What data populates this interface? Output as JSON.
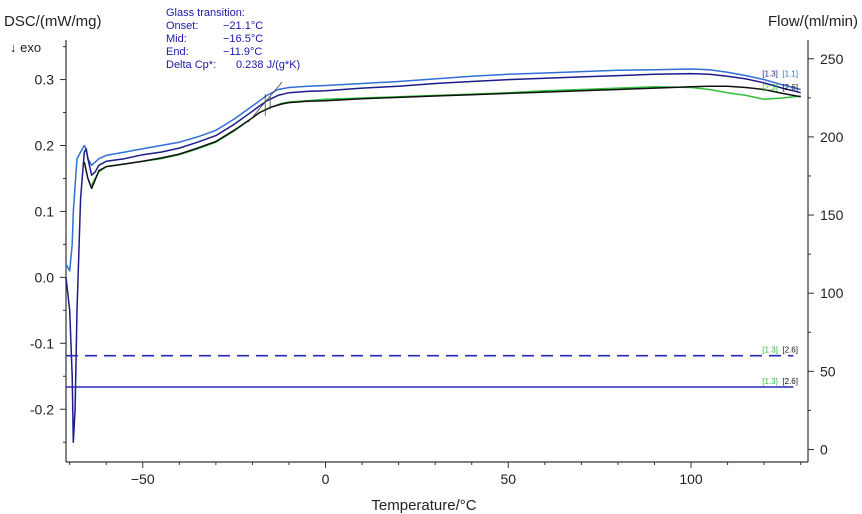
{
  "chart_data": {
    "type": "line",
    "xlabel": "Temperature/°C",
    "ylabel_left": "DSC/(mW/mg)",
    "ylabel_right": "Flow/(ml/min)",
    "exo_label": "↓ exo",
    "xlim": [
      -71,
      132
    ],
    "ylim_left": [
      -0.28,
      0.36
    ],
    "ylim_right": [
      -8,
      262
    ],
    "x_ticks": [
      -50,
      0,
      50,
      100
    ],
    "x_tick_labels": [
      "−50",
      "0",
      "50",
      "100"
    ],
    "y_left_ticks": [
      -0.2,
      -0.1,
      0.0,
      0.1,
      0.2,
      0.3
    ],
    "y_left_tick_labels": [
      "-0.2",
      "-0.1",
      "0.0",
      "0.1",
      "0.2",
      "0.3"
    ],
    "y_right_ticks": [
      0,
      50,
      100,
      150,
      200,
      250
    ],
    "y_right_tick_labels": [
      "0",
      "50",
      "100",
      "150",
      "200",
      "250"
    ],
    "grid": false,
    "series": [
      {
        "color": "#2f6fd6",
        "axis": "left",
        "x": [
          -71,
          -70,
          -69.3,
          -69,
          -68,
          -67,
          -66,
          -65.5,
          -65,
          -64,
          -63,
          -62,
          -60,
          -55,
          -50,
          -45,
          -40,
          -35,
          -30,
          -25,
          -21,
          -18,
          -16,
          -13,
          -10,
          -5,
          0,
          10,
          20,
          30,
          40,
          50,
          60,
          70,
          80,
          90,
          100,
          105,
          110,
          115,
          120,
          125,
          130
        ],
        "y": [
          0.02,
          0.01,
          0.05,
          0.1,
          0.18,
          0.19,
          0.2,
          0.195,
          0.18,
          0.17,
          0.175,
          0.18,
          0.185,
          0.19,
          0.195,
          0.2,
          0.205,
          0.213,
          0.223,
          0.24,
          0.256,
          0.268,
          0.276,
          0.285,
          0.288,
          0.29,
          0.291,
          0.294,
          0.297,
          0.301,
          0.305,
          0.308,
          0.31,
          0.312,
          0.314,
          0.315,
          0.316,
          0.315,
          0.311,
          0.306,
          0.3,
          0.292,
          0.285
        ],
        "label": "[1.1]"
      },
      {
        "color": "#1c1c8c",
        "axis": "left",
        "x": [
          -71,
          -70,
          -69.3,
          -69,
          -68.5,
          -68,
          -67,
          -66,
          -65.5,
          -65,
          -64,
          -63,
          -62,
          -60,
          -55,
          -50,
          -45,
          -40,
          -35,
          -30,
          -25,
          -21,
          -18,
          -16,
          -13,
          -10,
          -5,
          0,
          10,
          20,
          30,
          40,
          50,
          60,
          70,
          80,
          90,
          100,
          105,
          110,
          115,
          120,
          125,
          130
        ],
        "y": [
          0.0,
          -0.05,
          -0.15,
          -0.25,
          -0.2,
          -0.05,
          0.12,
          0.19,
          0.195,
          0.18,
          0.155,
          0.16,
          0.17,
          0.176,
          0.18,
          0.186,
          0.19,
          0.196,
          0.205,
          0.215,
          0.232,
          0.248,
          0.26,
          0.268,
          0.276,
          0.28,
          0.282,
          0.283,
          0.287,
          0.29,
          0.294,
          0.297,
          0.3,
          0.302,
          0.304,
          0.306,
          0.308,
          0.309,
          0.308,
          0.305,
          0.301,
          0.295,
          0.287,
          0.28
        ],
        "label": "[1.3]"
      },
      {
        "color": "#2fbf3a",
        "axis": "left",
        "x": [
          -64,
          -63,
          -62,
          -60,
          -55,
          -50,
          -45,
          -40,
          -35,
          -30,
          -25,
          -21,
          -18,
          -15,
          -12,
          -10,
          -5,
          0,
          10,
          20,
          30,
          40,
          50,
          60,
          70,
          80,
          90,
          100,
          105,
          110,
          115,
          120,
          125,
          130
        ],
        "y": [
          0.14,
          0.15,
          0.16,
          0.168,
          0.172,
          0.176,
          0.18,
          0.186,
          0.195,
          0.205,
          0.222,
          0.238,
          0.25,
          0.258,
          0.264,
          0.266,
          0.268,
          0.27,
          0.272,
          0.274,
          0.276,
          0.278,
          0.28,
          0.283,
          0.285,
          0.287,
          0.289,
          0.288,
          0.285,
          0.28,
          0.276,
          0.27,
          0.272,
          0.275
        ],
        "label": "[2.3]"
      },
      {
        "color": "#111111",
        "axis": "left",
        "x": [
          -66,
          -65,
          -64,
          -63,
          -62,
          -60,
          -55,
          -50,
          -45,
          -40,
          -35,
          -30,
          -25,
          -21,
          -18,
          -15,
          -12,
          -10,
          -5,
          0,
          10,
          20,
          30,
          40,
          50,
          60,
          70,
          80,
          90,
          100,
          105,
          110,
          115,
          120,
          125,
          130
        ],
        "y": [
          0.175,
          0.15,
          0.135,
          0.148,
          0.162,
          0.168,
          0.172,
          0.176,
          0.181,
          0.187,
          0.196,
          0.206,
          0.223,
          0.238,
          0.25,
          0.258,
          0.263,
          0.265,
          0.267,
          0.268,
          0.271,
          0.273,
          0.275,
          0.277,
          0.279,
          0.281,
          0.283,
          0.285,
          0.287,
          0.289,
          0.29,
          0.29,
          0.288,
          0.285,
          0.279,
          0.274
        ],
        "label": "[2.6]"
      },
      {
        "color": "#2727b8",
        "axis": "right",
        "dash": true,
        "x": [
          -71,
          128
        ],
        "y": [
          60,
          60
        ],
        "label": "[1.3][2.6]"
      },
      {
        "color": "#2727b8",
        "axis": "right",
        "dash": false,
        "x": [
          -71,
          128
        ],
        "y": [
          40,
          40
        ],
        "label": "[1.3][2.6]"
      }
    ],
    "end_tags": [
      {
        "text": "[1.3]",
        "color": "#1c1c8c",
        "x": 119.5,
        "y": 0.305,
        "axis": "left"
      },
      {
        "text": "[1.1]",
        "color": "#2f6fd6",
        "x": 125,
        "y": 0.305,
        "axis": "left"
      },
      {
        "text": "[2.3]",
        "color": "#2fbf3a",
        "x": 119.5,
        "y": 0.284,
        "axis": "left"
      },
      {
        "text": "[2.6]",
        "color": "#111111",
        "x": 125,
        "y": 0.284,
        "axis": "left"
      },
      {
        "text": "[1.3]",
        "color": "#2fbf3a",
        "x": 119.5,
        "y": 62,
        "axis": "right"
      },
      {
        "text": "[2.6]",
        "color": "#111111",
        "x": 125,
        "y": 62,
        "axis": "right"
      },
      {
        "text": "[1.3]",
        "color": "#2fbf3a",
        "x": 119.5,
        "y": 42,
        "axis": "right"
      },
      {
        "text": "[2.6]",
        "color": "#111111",
        "x": 125,
        "y": 42,
        "axis": "right"
      }
    ],
    "annotation": {
      "title": "Glass  transition:",
      "rows": [
        {
          "label": "Onset:",
          "value": "−21.1°C"
        },
        {
          "label": "Mid:",
          "value": "−16.5°C"
        },
        {
          "label": "End:",
          "value": "−11.9°C"
        },
        {
          "label": "Delta Cp*:",
          "value": "0.238 J/(g*K)"
        }
      ],
      "color": "#1a1aa6",
      "marker_x": [
        -21.1,
        -16.5,
        -11.9
      ]
    }
  }
}
